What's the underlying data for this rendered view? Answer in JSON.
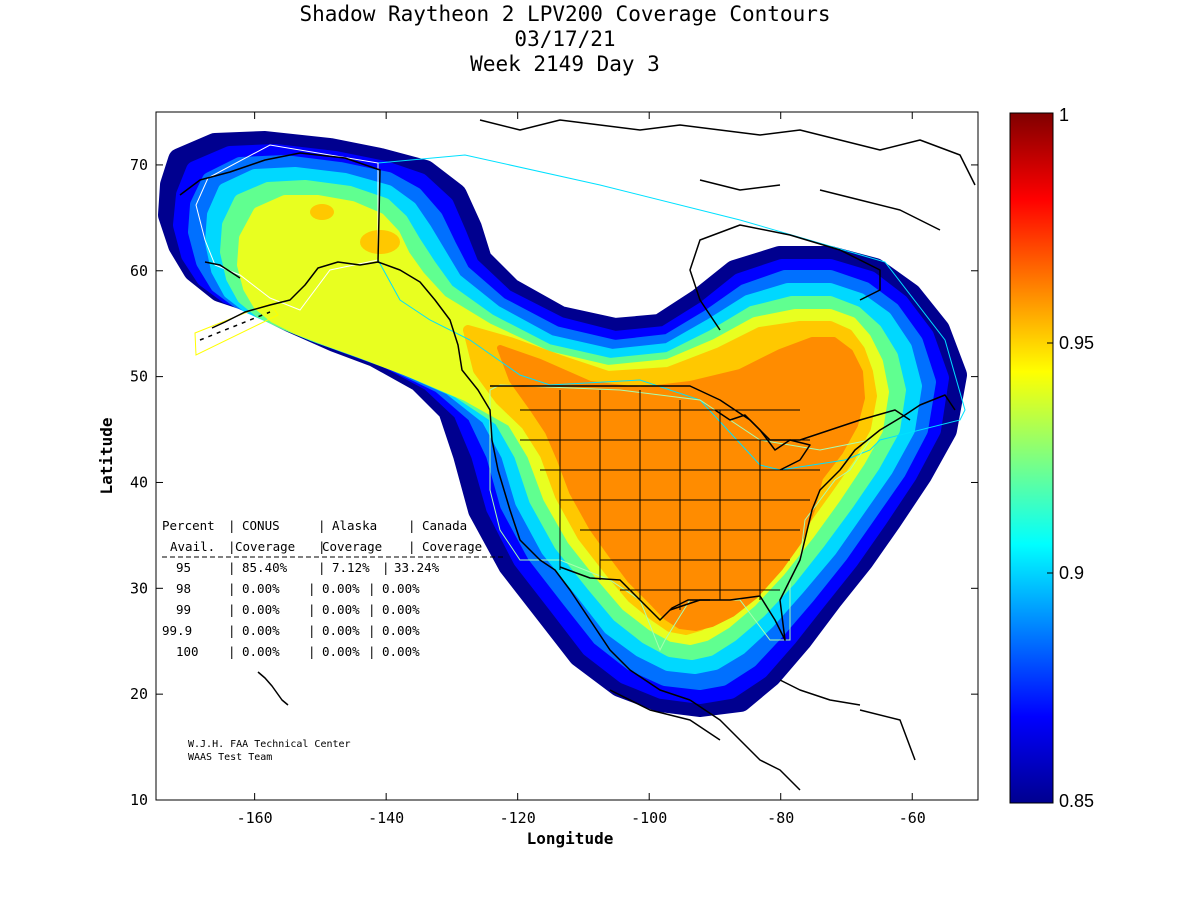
{
  "title": {
    "line1": "Shadow Raytheon 2 LPV200 Coverage Contours",
    "line2": "03/17/21",
    "line3": "Week 2149 Day 3"
  },
  "axes": {
    "xlabel": "Longitude",
    "ylabel": "Latitude",
    "xlim": [
      -175,
      -50
    ],
    "ylim": [
      10,
      75
    ],
    "xticks": [
      -160,
      -140,
      -120,
      -100,
      -80,
      -60
    ],
    "yticks": [
      10,
      20,
      30,
      40,
      50,
      60,
      70
    ]
  },
  "colorbar": {
    "min": 0.85,
    "max": 1,
    "ticks": [
      "1",
      "0.95",
      "0.9",
      "0.85"
    ],
    "tick_values": [
      1,
      0.95,
      0.9,
      0.85
    ],
    "colormap": "jet"
  },
  "stats_table": {
    "header1": [
      "Percent",
      "CONUS",
      "Alaska",
      "Canada"
    ],
    "header2": [
      "Avail.",
      "Coverage",
      "Coverage",
      "Coverage"
    ],
    "rows": [
      {
        "avail": "95",
        "conus": "85.40%",
        "alaska": "7.12%",
        "canada": "33.24%"
      },
      {
        "avail": "98",
        "conus": "0.00%",
        "alaska": "0.00%",
        "canada": "0.00%"
      },
      {
        "avail": "99",
        "conus": "0.00%",
        "alaska": "0.00%",
        "canada": "0.00%"
      },
      {
        "avail": "99.9",
        "conus": "0.00%",
        "alaska": "0.00%",
        "canada": "0.00%"
      },
      {
        "avail": "100",
        "conus": "0.00%",
        "alaska": "0.00%",
        "canada": "0.00%"
      }
    ]
  },
  "credit": {
    "line1": "W.J.H. FAA Technical Center",
    "line2": "WAAS Test Team"
  },
  "colors": {
    "coverage_max_band": "#ff8c00",
    "service_volume_outline": "#00e0ff",
    "alaska_outline": "#ffffff",
    "aleutian_outline": "#ffff00",
    "coastline": "#000000"
  }
}
